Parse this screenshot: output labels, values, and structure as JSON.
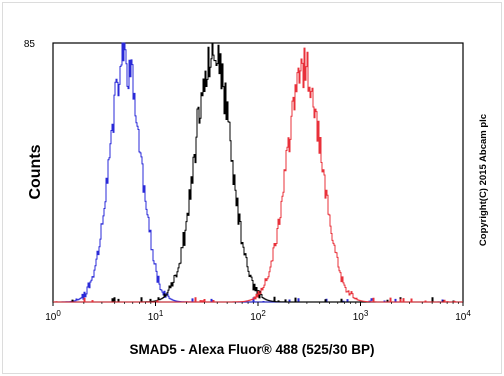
{
  "chart_data": {
    "type": "line",
    "xlabel": "SMAD5 - Alexa Fluor® 488 (525/30 BP)",
    "ylabel": "Counts",
    "y_tick_label": "85",
    "x_scale": "log",
    "xlim": [
      1,
      10000
    ],
    "ylim": [
      0,
      85
    ],
    "x_ticks": [
      {
        "base": "10",
        "exp": "0"
      },
      {
        "base": "10",
        "exp": "1"
      },
      {
        "base": "10",
        "exp": "2"
      },
      {
        "base": "10",
        "exp": "3"
      },
      {
        "base": "10",
        "exp": "4"
      }
    ],
    "copyright": "Copyright(C) 2015 Abcam plc",
    "grid": false,
    "series": [
      {
        "color": "#2a2ad8",
        "peak_x": 5.0,
        "peak_y": 80,
        "sigma_log10": 0.15,
        "seed": 11
      },
      {
        "color": "#000000",
        "peak_x": 36,
        "peak_y": 84,
        "sigma_log10": 0.17,
        "seed": 23
      },
      {
        "color": "#e8303a",
        "peak_x": 280,
        "peak_y": 77,
        "sigma_log10": 0.17,
        "seed": 37
      }
    ]
  }
}
